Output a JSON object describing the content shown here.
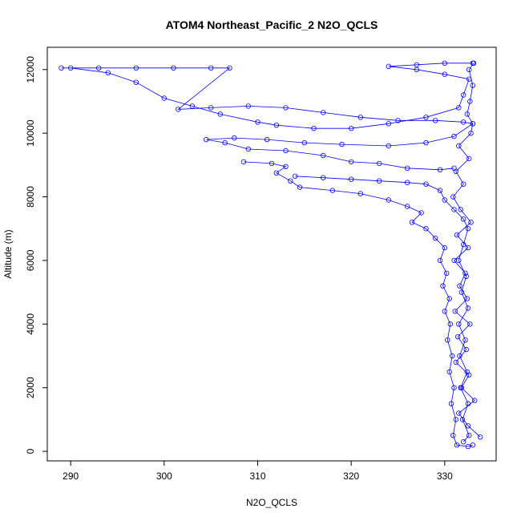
{
  "chart_data": {
    "type": "scatter",
    "title": "ATOM4 Northeast_Pacific_2 N2O_QCLS",
    "xlabel": "N2O_QCLS",
    "ylabel": "Altitude (m)",
    "xlim": [
      287.5,
      335.5
    ],
    "ylim": [
      -300,
      12700
    ],
    "xticks": [
      290,
      300,
      310,
      320,
      330
    ],
    "yticks": [
      0,
      2000,
      4000,
      6000,
      8000,
      10000,
      12000
    ],
    "grid": false,
    "legend": "none",
    "marker": "open-circle",
    "color": "#0000ff",
    "series": [
      {
        "values": [
          [
            333.8,
            450
          ],
          [
            332.5,
            800
          ],
          [
            331.5,
            1200
          ],
          [
            333.2,
            1600
          ],
          [
            331.8,
            2000
          ],
          [
            332.6,
            2400
          ],
          [
            331.2,
            2800
          ],
          [
            332.3,
            3200
          ],
          [
            331.4,
            3600
          ],
          [
            332.7,
            4000
          ],
          [
            331.1,
            4400
          ],
          [
            332.4,
            4800
          ],
          [
            331.6,
            5200
          ],
          [
            332.2,
            5600
          ],
          [
            331.0,
            6000
          ],
          [
            332.5,
            6400
          ],
          [
            331.3,
            6800
          ],
          [
            332.8,
            7200
          ],
          [
            331.7,
            7600
          ],
          [
            330.9,
            8000
          ],
          [
            332.0,
            8400
          ],
          [
            331.2,
            8800
          ],
          [
            332.6,
            9200
          ],
          [
            331.5,
            9600
          ],
          [
            332.8,
            10000
          ],
          [
            333.0,
            10300
          ],
          [
            332.4,
            10600
          ],
          [
            332.7,
            11000
          ],
          [
            333.0,
            11500
          ],
          [
            332.6,
            12000
          ],
          [
            333.1,
            12200
          ]
        ]
      },
      {
        "values": [
          [
            333.0,
            12200
          ],
          [
            330.0,
            12200
          ],
          [
            327.0,
            12150
          ],
          [
            324.0,
            12100
          ],
          [
            327.0,
            12000
          ],
          [
            330.0,
            11850
          ],
          [
            332.6,
            11700
          ],
          [
            332.0,
            11200
          ],
          [
            331.5,
            10800
          ],
          [
            328.0,
            10500
          ],
          [
            324.0,
            10300
          ],
          [
            320.0,
            10150
          ],
          [
            316.0,
            10150
          ],
          [
            312.0,
            10250
          ],
          [
            310.0,
            10350
          ],
          [
            306.0,
            10600
          ],
          [
            303.0,
            10850
          ],
          [
            300.0,
            11100
          ],
          [
            297.0,
            11600
          ],
          [
            294.0,
            11900
          ],
          [
            290.0,
            12050
          ]
        ]
      },
      {
        "values": [
          [
            289.0,
            12050
          ],
          [
            293.0,
            12050
          ],
          [
            297.0,
            12050
          ],
          [
            301.0,
            12050
          ],
          [
            305.0,
            12050
          ],
          [
            307.0,
            12050
          ],
          [
            301.5,
            10750
          ],
          [
            305.0,
            10800
          ],
          [
            309.0,
            10850
          ],
          [
            313.0,
            10800
          ],
          [
            317.0,
            10650
          ],
          [
            321.0,
            10500
          ],
          [
            325.0,
            10400
          ],
          [
            329.0,
            10400
          ],
          [
            332.0,
            10350
          ],
          [
            333.0,
            10300
          ],
          [
            331.0,
            9900
          ],
          [
            328.0,
            9700
          ],
          [
            324.0,
            9600
          ],
          [
            319.0,
            9650
          ],
          [
            315.0,
            9700
          ],
          [
            311.0,
            9800
          ],
          [
            307.5,
            9850
          ],
          [
            304.5,
            9800
          ],
          [
            306.5,
            9700
          ],
          [
            309.0,
            9500
          ],
          [
            313.0,
            9450
          ],
          [
            317.0,
            9300
          ],
          [
            320.0,
            9100
          ],
          [
            323.0,
            9050
          ],
          [
            326.0,
            8900
          ],
          [
            329.5,
            8850
          ],
          [
            331.0,
            8900
          ]
        ]
      },
      {
        "values": [
          [
            308.5,
            9100
          ],
          [
            311.5,
            9050
          ],
          [
            313.0,
            8950
          ],
          [
            312.0,
            8750
          ],
          [
            313.5,
            8500
          ],
          [
            314.5,
            8300
          ],
          [
            318.0,
            8200
          ],
          [
            321.0,
            8100
          ],
          [
            324.0,
            7900
          ],
          [
            326.0,
            7700
          ],
          [
            327.5,
            7500
          ],
          [
            326.5,
            7200
          ],
          [
            328.0,
            7000
          ],
          [
            329.0,
            6700
          ],
          [
            330.0,
            6400
          ],
          [
            329.5,
            6000
          ],
          [
            330.2,
            5600
          ],
          [
            329.8,
            5200
          ],
          [
            330.5,
            4800
          ],
          [
            330.0,
            4400
          ],
          [
            330.6,
            4000
          ],
          [
            330.3,
            3500
          ],
          [
            330.8,
            3000
          ],
          [
            330.5,
            2500
          ],
          [
            331.0,
            2000
          ],
          [
            330.7,
            1500
          ],
          [
            331.2,
            1000
          ],
          [
            330.9,
            500
          ],
          [
            331.3,
            200
          ],
          [
            332.5,
            150
          ],
          [
            333.0,
            200
          ]
        ]
      },
      {
        "values": [
          [
            314.0,
            8650
          ],
          [
            317.0,
            8600
          ],
          [
            320.0,
            8550
          ],
          [
            323.0,
            8500
          ],
          [
            326.0,
            8450
          ],
          [
            328.0,
            8400
          ],
          [
            329.5,
            8200
          ],
          [
            330.0,
            7900
          ],
          [
            331.0,
            7600
          ],
          [
            332.0,
            7300
          ],
          [
            332.5,
            7000
          ],
          [
            332.0,
            6500
          ],
          [
            331.5,
            6000
          ],
          [
            332.3,
            5500
          ],
          [
            331.8,
            5000
          ],
          [
            332.5,
            4500
          ],
          [
            331.5,
            4000
          ],
          [
            332.2,
            3500
          ],
          [
            331.6,
            3000
          ],
          [
            332.4,
            2500
          ],
          [
            331.7,
            2000
          ],
          [
            332.5,
            1500
          ],
          [
            331.9,
            1000
          ],
          [
            332.6,
            500
          ],
          [
            332.0,
            300
          ]
        ]
      }
    ]
  }
}
